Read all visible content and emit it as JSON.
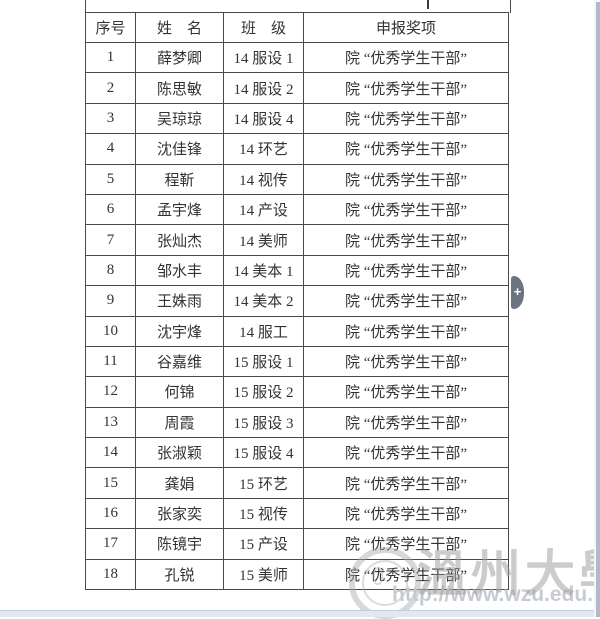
{
  "table": {
    "columns": [
      "序号",
      "姓　名",
      "班　级",
      "申报奖项"
    ],
    "rows": [
      {
        "no": "1",
        "name": "薛梦卿",
        "class": "14 服设 1",
        "award": "院 “优秀学生干部”"
      },
      {
        "no": "2",
        "name": "陈思敏",
        "class": "14 服设 2",
        "award": "院 “优秀学生干部”"
      },
      {
        "no": "3",
        "name": "吴琼琼",
        "class": "14 服设 4",
        "award": "院 “优秀学生干部”"
      },
      {
        "no": "4",
        "name": "沈佳锋",
        "class": "14 环艺",
        "award": "院 “优秀学生干部”"
      },
      {
        "no": "5",
        "name": "程靳",
        "class": "14 视传",
        "award": "院 “优秀学生干部”"
      },
      {
        "no": "6",
        "name": "孟宇烽",
        "class": "14 产设",
        "award": "院 “优秀学生干部”"
      },
      {
        "no": "7",
        "name": "张灿杰",
        "class": "14 美师",
        "award": "院 “优秀学生干部”"
      },
      {
        "no": "8",
        "name": "邹水丰",
        "class": "14 美本 1",
        "award": "院 “优秀学生干部”"
      },
      {
        "no": "9",
        "name": "王姝雨",
        "class": "14 美本 2",
        "award": "院 “优秀学生干部”"
      },
      {
        "no": "10",
        "name": "沈宇烽",
        "class": "14 服工",
        "award": "院 “优秀学生干部”"
      },
      {
        "no": "11",
        "name": "谷嘉维",
        "class": "15 服设 1",
        "award": "院 “优秀学生干部”"
      },
      {
        "no": "12",
        "name": "何锦",
        "class": "15 服设 2",
        "award": "院 “优秀学生干部”"
      },
      {
        "no": "13",
        "name": "周霞",
        "class": "15 服设 3",
        "award": "院 “优秀学生干部”"
      },
      {
        "no": "14",
        "name": "张淑颖",
        "class": "15 服设 4",
        "award": "院 “优秀学生干部”"
      },
      {
        "no": "15",
        "name": "龚娟",
        "class": "15 环艺",
        "award": "院 “优秀学生干部”"
      },
      {
        "no": "16",
        "name": "张家奕",
        "class": "15 视传",
        "award": "院 “优秀学生干部”"
      },
      {
        "no": "17",
        "name": "陈镜宇",
        "class": "15 产设",
        "award": "院 “优秀学生干部”"
      },
      {
        "no": "18",
        "name": "孔锐",
        "class": "15 美师",
        "award": "院 “优秀学生干部”"
      }
    ]
  },
  "watermark": {
    "title": "溫州大學",
    "url": "http://www.wzu.edu.cn",
    "logo": "wenzhou-university-seal"
  },
  "nav": {
    "next_arrow_label": "+"
  },
  "colors": {
    "table_border": "#4a4a4a",
    "text": "#333333",
    "arrow_handle": "#6b7480",
    "scrollbar_thumb": "#b3bac6",
    "bottom_band": "#e2e7f0",
    "watermark_gray": "#9e9e9e"
  }
}
